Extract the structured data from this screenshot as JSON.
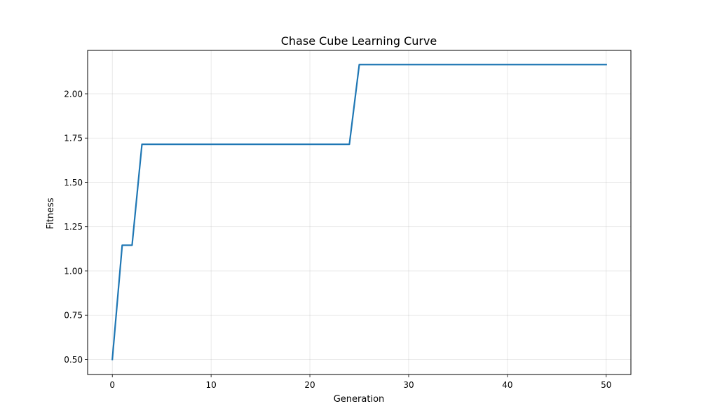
{
  "chart_data": {
    "type": "line",
    "title": "Chase Cube Learning Curve",
    "xlabel": "Generation",
    "ylabel": "Fitness",
    "xlim": [
      -2.5,
      52.5
    ],
    "ylim": [
      0.415,
      2.245
    ],
    "xticks": [
      0,
      10,
      20,
      30,
      40,
      50
    ],
    "xtick_labels": [
      "0",
      "10",
      "20",
      "30",
      "40",
      "50"
    ],
    "yticks": [
      0.5,
      0.75,
      1.0,
      1.25,
      1.5,
      1.75,
      2.0
    ],
    "ytick_labels": [
      "0.50",
      "0.75",
      "1.00",
      "1.25",
      "1.50",
      "1.75",
      "2.00"
    ],
    "grid": true,
    "legend": "none",
    "series": [
      {
        "color": "#1f77b4",
        "x": [
          0,
          1,
          2,
          3,
          24,
          25,
          50
        ],
        "y": [
          0.5,
          1.145,
          1.145,
          1.715,
          1.715,
          2.165,
          2.165
        ]
      }
    ]
  }
}
